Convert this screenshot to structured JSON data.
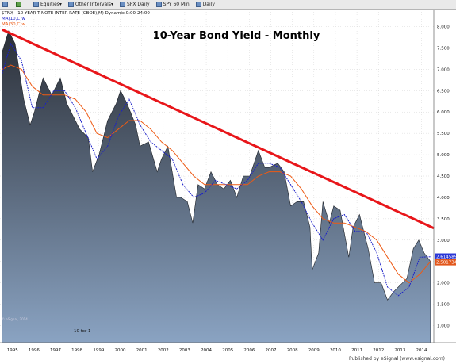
{
  "toolbar": {
    "items": [
      {
        "label": ""
      },
      {
        "label": ""
      },
      {
        "label": "Equities"
      },
      {
        "label": "Other Intervals"
      },
      {
        "label": "SPX Daily"
      },
      {
        "label": "SPY 60 Min"
      },
      {
        "label": "Daily"
      }
    ]
  },
  "header": {
    "symbol_line": "$TNX - 10 YEAR T-NOTE INTER RATE (CBOE),M) Dynamic,0:00-24:00",
    "ma10_label": "MA(10,C)w",
    "ma30_label": "MA(30,C)w",
    "copyright": "© eSignal, 2014"
  },
  "scale_label": "10 for 1",
  "footer": "Published by eSignal (www.esignal.com)",
  "colors": {
    "trendline": "#e8161a",
    "ma10": "#1b20c8",
    "ma30": "#ee5a14",
    "area_top": "#2b2f37",
    "area_bottom": "#8aa3c2",
    "background": "#ffffff",
    "last_ma10_badge": "#2a36d6",
    "last_ma30_badge": "#e2561a"
  },
  "chart_data": {
    "type": "area",
    "title": "10-Year Bond Yield - Monthly",
    "xlabel": "",
    "ylabel": "",
    "xlim": [
      1994.5,
      2014.65
    ],
    "ylim": [
      0.6,
      8.4
    ],
    "y_ticks": [
      "8.000",
      "7.500",
      "7.000",
      "6.500",
      "6.000",
      "5.500",
      "5.000",
      "4.500",
      "4.000",
      "3.500",
      "3.000",
      "2.500",
      "2.000",
      "1.500",
      "1.000"
    ],
    "x_ticks": [
      "1995",
      "1996",
      "1997",
      "1998",
      "1999",
      "2000",
      "2001",
      "2002",
      "2003",
      "2004",
      "2005",
      "2006",
      "2007",
      "2008",
      "2009",
      "2010",
      "2011",
      "2012",
      "2013",
      "2014"
    ],
    "grid": true,
    "last_value_labels": [
      "2.614589",
      "2.501734"
    ],
    "series": [
      {
        "name": "",
        "x": [
          1994.6,
          1994.9,
          1995.2,
          1995.6,
          1995.9,
          1996.1,
          1996.5,
          1996.9,
          1997.3,
          1997.6,
          1997.9,
          1998.2,
          1998.6,
          1998.8,
          1999.1,
          1999.5,
          1999.9,
          2000.1,
          2000.4,
          2000.8,
          2001.0,
          2001.4,
          2001.8,
          2002.0,
          2002.3,
          2002.7,
          2002.9,
          2003.2,
          2003.45,
          2003.7,
          2004.0,
          2004.3,
          2004.6,
          2004.9,
          2005.2,
          2005.5,
          2005.8,
          2006.1,
          2006.5,
          2006.8,
          2007.0,
          2007.4,
          2007.7,
          2008.0,
          2008.3,
          2008.6,
          2008.9,
          2009.0,
          2009.3,
          2009.5,
          2009.8,
          2010.0,
          2010.3,
          2010.7,
          2010.9,
          2011.2,
          2011.6,
          2011.9,
          2012.2,
          2012.5,
          2012.8,
          2013.0,
          2013.4,
          2013.7,
          2013.95,
          2014.2,
          2014.5
        ],
        "values": [
          7.4,
          7.9,
          7.6,
          6.3,
          5.7,
          6.0,
          6.8,
          6.4,
          6.8,
          6.2,
          5.9,
          5.6,
          5.4,
          4.6,
          5.0,
          5.8,
          6.2,
          6.5,
          6.2,
          5.7,
          5.2,
          5.3,
          4.6,
          4.9,
          5.2,
          4.0,
          4.0,
          3.9,
          3.4,
          4.3,
          4.2,
          4.6,
          4.3,
          4.2,
          4.4,
          4.0,
          4.5,
          4.5,
          5.1,
          4.7,
          4.7,
          4.8,
          4.6,
          3.8,
          3.9,
          3.9,
          3.3,
          2.3,
          2.7,
          3.9,
          3.4,
          3.8,
          3.7,
          2.6,
          3.3,
          3.6,
          2.8,
          2.0,
          2.0,
          1.6,
          1.8,
          1.9,
          2.1,
          2.8,
          3.0,
          2.7,
          2.5
        ]
      },
      {
        "name": "MA(10,C)w",
        "x": [
          1994.6,
          1995.0,
          1995.5,
          1996.0,
          1996.5,
          1997.0,
          1997.5,
          1998.0,
          1998.5,
          1999.0,
          1999.5,
          2000.0,
          2000.5,
          2001.0,
          2001.5,
          2002.0,
          2002.5,
          2003.0,
          2003.5,
          2004.0,
          2004.5,
          2005.0,
          2005.5,
          2006.0,
          2006.5,
          2007.0,
          2007.5,
          2008.0,
          2008.5,
          2009.0,
          2009.5,
          2010.0,
          2010.5,
          2011.0,
          2011.5,
          2012.0,
          2012.5,
          2013.0,
          2013.5,
          2014.0,
          2014.5
        ],
        "values": [
          6.9,
          7.6,
          7.2,
          6.1,
          6.1,
          6.5,
          6.5,
          6.1,
          5.5,
          4.9,
          5.2,
          5.9,
          6.3,
          5.7,
          5.3,
          5.1,
          4.9,
          4.3,
          4.0,
          4.1,
          4.4,
          4.3,
          4.2,
          4.4,
          4.8,
          4.8,
          4.7,
          4.3,
          3.9,
          3.4,
          3.0,
          3.5,
          3.6,
          3.2,
          3.2,
          2.7,
          1.9,
          1.7,
          1.9,
          2.6,
          2.61
        ]
      },
      {
        "name": "MA(30,C)w",
        "x": [
          1994.6,
          1995.0,
          1995.5,
          1996.0,
          1996.5,
          1997.0,
          1997.5,
          1998.0,
          1998.5,
          1999.0,
          1999.5,
          2000.0,
          2000.5,
          2001.0,
          2001.5,
          2002.0,
          2002.5,
          2003.0,
          2003.5,
          2004.0,
          2004.5,
          2005.0,
          2005.5,
          2006.0,
          2006.5,
          2007.0,
          2007.5,
          2008.0,
          2008.5,
          2009.0,
          2009.5,
          2010.0,
          2010.5,
          2011.0,
          2011.5,
          2012.0,
          2012.5,
          2013.0,
          2013.5,
          2014.0,
          2014.5
        ],
        "values": [
          7.0,
          7.1,
          7.0,
          6.6,
          6.4,
          6.4,
          6.4,
          6.3,
          6.0,
          5.5,
          5.4,
          5.6,
          5.8,
          5.8,
          5.6,
          5.3,
          5.1,
          4.8,
          4.5,
          4.3,
          4.3,
          4.3,
          4.3,
          4.3,
          4.5,
          4.6,
          4.6,
          4.5,
          4.2,
          3.8,
          3.5,
          3.4,
          3.4,
          3.3,
          3.2,
          3.0,
          2.6,
          2.2,
          2.0,
          2.2,
          2.5
        ]
      },
      {
        "name": "trendline",
        "x": [
          1994.6,
          2014.65
        ],
        "values": [
          7.93,
          3.28
        ]
      }
    ]
  }
}
